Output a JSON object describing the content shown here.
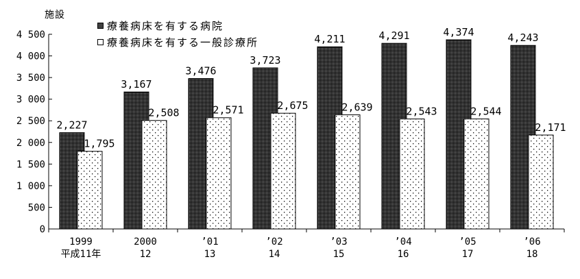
{
  "unit_label": "施設",
  "colors": {
    "foreground": "#000000",
    "background": "#ffffff",
    "hospital_fill": "dense-white-dots-on-black",
    "clinic_fill": "sparse-black-dots-on-white"
  },
  "chart_data": {
    "type": "bar",
    "title": "",
    "ylabel": "施設",
    "xlabel": "",
    "grid": false,
    "legend_position": "top-left",
    "ylim": [
      0,
      4500
    ],
    "ytick_step": 500,
    "ytick_labels": [
      "0",
      "500",
      "1 000",
      "1 500",
      "2 000",
      "2 500",
      "3 000",
      "3 500",
      "4 000",
      "4 500"
    ],
    "categories": [
      "1999",
      "2000",
      "’01",
      "’02",
      "’03",
      "’04",
      "’05",
      "’06"
    ],
    "categories_era_line": [
      "平成11年",
      "12",
      "13",
      "14",
      "15",
      "16",
      "17",
      "18"
    ],
    "series": [
      {
        "name": "療養病床を有する病院",
        "marker": "filled-square",
        "values": [
          2227,
          3167,
          3476,
          3723,
          4211,
          4291,
          4374,
          4243
        ],
        "value_labels": [
          "2,227",
          "3,167",
          "3,476",
          "3,723",
          "4,211",
          "4,291",
          "4,374",
          "4,243"
        ]
      },
      {
        "name": "療養病床を有する一般診療所",
        "marker": "open-square",
        "values": [
          1795,
          2508,
          2571,
          2675,
          2639,
          2543,
          2544,
          2171
        ],
        "value_labels": [
          "1,795",
          "2,508",
          "2,571",
          "2,675",
          "2,639",
          "2,543",
          "2,544",
          "2,171"
        ]
      }
    ]
  }
}
